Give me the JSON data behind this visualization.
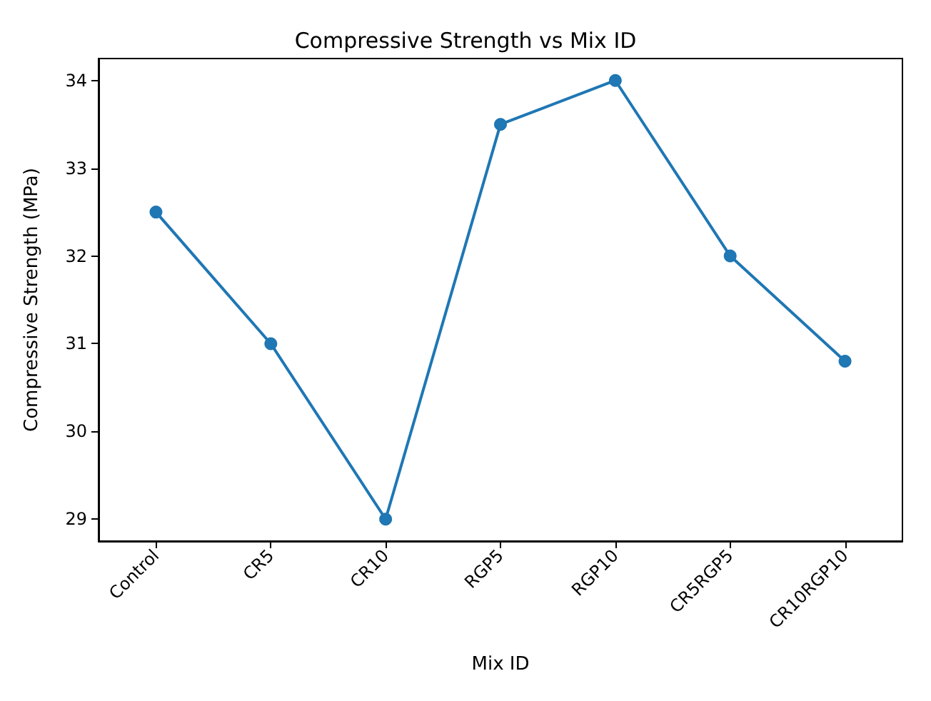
{
  "chart_data": {
    "type": "line",
    "title": "Compressive Strength vs Mix ID",
    "xlabel": "Mix ID",
    "ylabel": "Compressive Strength (MPa)",
    "categories": [
      "Control",
      "CR5",
      "CR10",
      "RGP5",
      "RGP10",
      "CR5RGP5",
      "CR10RGP10"
    ],
    "series": [
      {
        "color": "#1f77b4",
        "values": [
          32.5,
          31,
          29,
          33.5,
          34,
          32,
          30.8
        ]
      }
    ],
    "ylim": [
      28.75,
      34.25
    ],
    "yticks": [
      29,
      30,
      31,
      32,
      33,
      34
    ],
    "marker": "circle",
    "line_style": "solid",
    "grid": false
  }
}
